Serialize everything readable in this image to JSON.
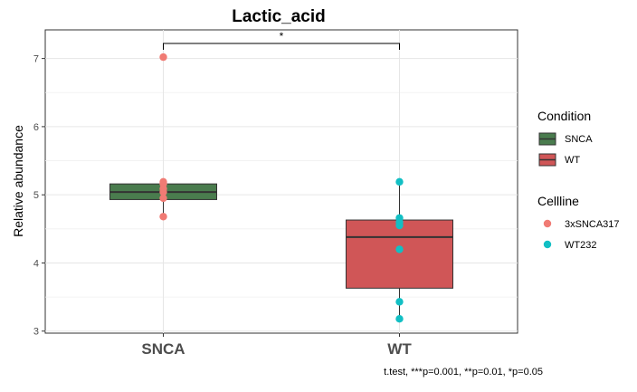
{
  "chart_data": {
    "type": "box",
    "title": "Lactic_acid",
    "xlabel": "",
    "ylabel": "Relative abundance",
    "categories": [
      "SNCA",
      "WT"
    ],
    "ylim": [
      2.97,
      7.42
    ],
    "yticks": [
      3,
      4,
      5,
      6,
      7
    ],
    "grid": true,
    "boxes": [
      {
        "category": "SNCA",
        "condition": "SNCA",
        "min": 4.68,
        "q1": 4.93,
        "median": 5.04,
        "q3": 5.16,
        "max": 5.19,
        "color": "#4a7c4e"
      },
      {
        "category": "WT",
        "condition": "WT",
        "min": 3.18,
        "q1": 3.63,
        "median": 4.38,
        "q3": 4.63,
        "max": 5.19,
        "color": "#d05657"
      }
    ],
    "points": [
      {
        "category": "SNCA",
        "y": 7.02,
        "cellline": "3xSNCA317"
      },
      {
        "category": "SNCA",
        "y": 5.19,
        "cellline": "3xSNCA317"
      },
      {
        "category": "SNCA",
        "y": 5.16,
        "cellline": "3xSNCA317"
      },
      {
        "category": "SNCA",
        "y": 5.09,
        "cellline": "3xSNCA317"
      },
      {
        "category": "SNCA",
        "y": 5.04,
        "cellline": "3xSNCA317"
      },
      {
        "category": "SNCA",
        "y": 4.95,
        "cellline": "3xSNCA317"
      },
      {
        "category": "SNCA",
        "y": 4.68,
        "cellline": "3xSNCA317"
      },
      {
        "category": "WT",
        "y": 5.19,
        "cellline": "WT232"
      },
      {
        "category": "WT",
        "y": 4.66,
        "cellline": "WT232"
      },
      {
        "category": "WT",
        "y": 4.6,
        "cellline": "WT232"
      },
      {
        "category": "WT",
        "y": 4.55,
        "cellline": "WT232"
      },
      {
        "category": "WT",
        "y": 4.2,
        "cellline": "WT232"
      },
      {
        "category": "WT",
        "y": 3.43,
        "cellline": "WT232"
      },
      {
        "category": "WT",
        "y": 3.18,
        "cellline": "WT232"
      }
    ],
    "significance": {
      "from": "SNCA",
      "to": "WT",
      "label": "*",
      "y": 7.22
    },
    "legends": [
      {
        "title": "Condition",
        "kind": "box",
        "items": [
          {
            "label": "SNCA",
            "color": "#4a7c4e"
          },
          {
            "label": "WT",
            "color": "#d05657"
          }
        ]
      },
      {
        "title": "Cellline",
        "kind": "point",
        "items": [
          {
            "label": "3xSNCA317",
            "color": "#f07b74"
          },
          {
            "label": "WT232",
            "color": "#12bfc4"
          }
        ]
      }
    ],
    "legend_position": "right",
    "caption": "t.test, ***p=0.001, **p=0.01, *p=0.05"
  }
}
